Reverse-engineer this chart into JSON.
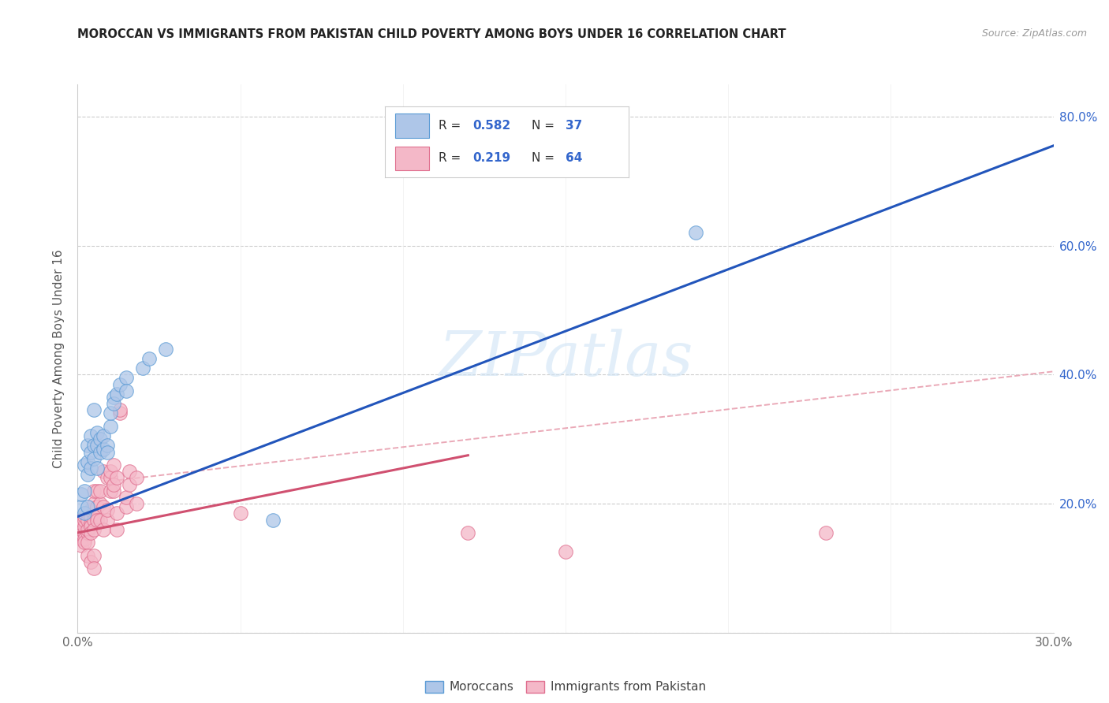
{
  "title": "MOROCCAN VS IMMIGRANTS FROM PAKISTAN CHILD POVERTY AMONG BOYS UNDER 16 CORRELATION CHART",
  "source": "Source: ZipAtlas.com",
  "ylabel": "Child Poverty Among Boys Under 16",
  "xlim": [
    0.0,
    0.3
  ],
  "ylim": [
    0.0,
    0.85
  ],
  "xticks": [
    0.0,
    0.05,
    0.1,
    0.15,
    0.2,
    0.25,
    0.3
  ],
  "xticklabels": [
    "0.0%",
    "",
    "",
    "",
    "",
    "",
    "30.0%"
  ],
  "yticks": [
    0.0,
    0.2,
    0.4,
    0.6,
    0.8
  ],
  "yticklabels_right": [
    "",
    "20.0%",
    "40.0%",
    "60.0%",
    "80.0%"
  ],
  "moroccan_color": "#aec6e8",
  "moroccan_edge": "#5b9bd5",
  "pakistan_color": "#f4b8c8",
  "pakistan_edge": "#e07090",
  "line_moroccan_color": "#2255bb",
  "line_moroccan_x0": 0.0,
  "line_moroccan_y0": 0.18,
  "line_moroccan_x1": 0.3,
  "line_moroccan_y1": 0.755,
  "line_pakistan_solid_color": "#d05070",
  "line_pakistan_solid_x0": 0.0,
  "line_pakistan_solid_y0": 0.155,
  "line_pakistan_solid_x1": 0.12,
  "line_pakistan_solid_y1": 0.275,
  "line_pakistan_dashed_color": "#e8a0b0",
  "line_pakistan_dashed_x0": 0.01,
  "line_pakistan_dashed_y0": 0.235,
  "line_pakistan_dashed_x1": 0.3,
  "line_pakistan_dashed_y1": 0.405,
  "legend_R_color": "#3366cc",
  "legend_N_color": "#3366cc",
  "legend_label_color": "#333333",
  "watermark_text": "ZIPatlas",
  "watermark_color": "#d0e4f5",
  "moroccan_label": "Moroccans",
  "pakistan_label": "Immigrants from Pakistan",
  "moroccan_points": [
    [
      0.001,
      0.195
    ],
    [
      0.001,
      0.215
    ],
    [
      0.002,
      0.22
    ],
    [
      0.002,
      0.185
    ],
    [
      0.002,
      0.26
    ],
    [
      0.003,
      0.195
    ],
    [
      0.003,
      0.245
    ],
    [
      0.003,
      0.265
    ],
    [
      0.003,
      0.29
    ],
    [
      0.004,
      0.305
    ],
    [
      0.004,
      0.28
    ],
    [
      0.004,
      0.255
    ],
    [
      0.005,
      0.345
    ],
    [
      0.005,
      0.27
    ],
    [
      0.005,
      0.29
    ],
    [
      0.006,
      0.29
    ],
    [
      0.006,
      0.255
    ],
    [
      0.006,
      0.31
    ],
    [
      0.007,
      0.28
    ],
    [
      0.007,
      0.3
    ],
    [
      0.008,
      0.285
    ],
    [
      0.008,
      0.305
    ],
    [
      0.009,
      0.29
    ],
    [
      0.009,
      0.28
    ],
    [
      0.01,
      0.32
    ],
    [
      0.01,
      0.34
    ],
    [
      0.011,
      0.365
    ],
    [
      0.011,
      0.355
    ],
    [
      0.012,
      0.37
    ],
    [
      0.013,
      0.385
    ],
    [
      0.015,
      0.395
    ],
    [
      0.015,
      0.375
    ],
    [
      0.02,
      0.41
    ],
    [
      0.022,
      0.425
    ],
    [
      0.027,
      0.44
    ],
    [
      0.06,
      0.175
    ],
    [
      0.19,
      0.62
    ]
  ],
  "pakistan_points": [
    [
      0.001,
      0.145
    ],
    [
      0.001,
      0.155
    ],
    [
      0.001,
      0.16
    ],
    [
      0.001,
      0.17
    ],
    [
      0.001,
      0.135
    ],
    [
      0.001,
      0.175
    ],
    [
      0.002,
      0.155
    ],
    [
      0.002,
      0.165
    ],
    [
      0.002,
      0.145
    ],
    [
      0.002,
      0.175
    ],
    [
      0.002,
      0.18
    ],
    [
      0.002,
      0.14
    ],
    [
      0.003,
      0.155
    ],
    [
      0.003,
      0.16
    ],
    [
      0.003,
      0.175
    ],
    [
      0.003,
      0.14
    ],
    [
      0.003,
      0.12
    ],
    [
      0.003,
      0.185
    ],
    [
      0.004,
      0.17
    ],
    [
      0.004,
      0.18
    ],
    [
      0.004,
      0.165
    ],
    [
      0.004,
      0.155
    ],
    [
      0.004,
      0.11
    ],
    [
      0.004,
      0.19
    ],
    [
      0.005,
      0.175
    ],
    [
      0.005,
      0.2
    ],
    [
      0.005,
      0.22
    ],
    [
      0.005,
      0.16
    ],
    [
      0.005,
      0.12
    ],
    [
      0.005,
      0.1
    ],
    [
      0.006,
      0.195
    ],
    [
      0.006,
      0.22
    ],
    [
      0.006,
      0.18
    ],
    [
      0.006,
      0.175
    ],
    [
      0.007,
      0.2
    ],
    [
      0.007,
      0.175
    ],
    [
      0.007,
      0.22
    ],
    [
      0.008,
      0.195
    ],
    [
      0.008,
      0.25
    ],
    [
      0.008,
      0.16
    ],
    [
      0.009,
      0.24
    ],
    [
      0.009,
      0.175
    ],
    [
      0.009,
      0.19
    ],
    [
      0.01,
      0.22
    ],
    [
      0.01,
      0.24
    ],
    [
      0.01,
      0.25
    ],
    [
      0.011,
      0.22
    ],
    [
      0.011,
      0.26
    ],
    [
      0.011,
      0.23
    ],
    [
      0.012,
      0.24
    ],
    [
      0.012,
      0.185
    ],
    [
      0.012,
      0.16
    ],
    [
      0.013,
      0.34
    ],
    [
      0.013,
      0.345
    ],
    [
      0.015,
      0.195
    ],
    [
      0.015,
      0.21
    ],
    [
      0.016,
      0.25
    ],
    [
      0.016,
      0.23
    ],
    [
      0.018,
      0.24
    ],
    [
      0.018,
      0.2
    ],
    [
      0.05,
      0.185
    ],
    [
      0.12,
      0.155
    ],
    [
      0.15,
      0.125
    ],
    [
      0.23,
      0.155
    ]
  ]
}
